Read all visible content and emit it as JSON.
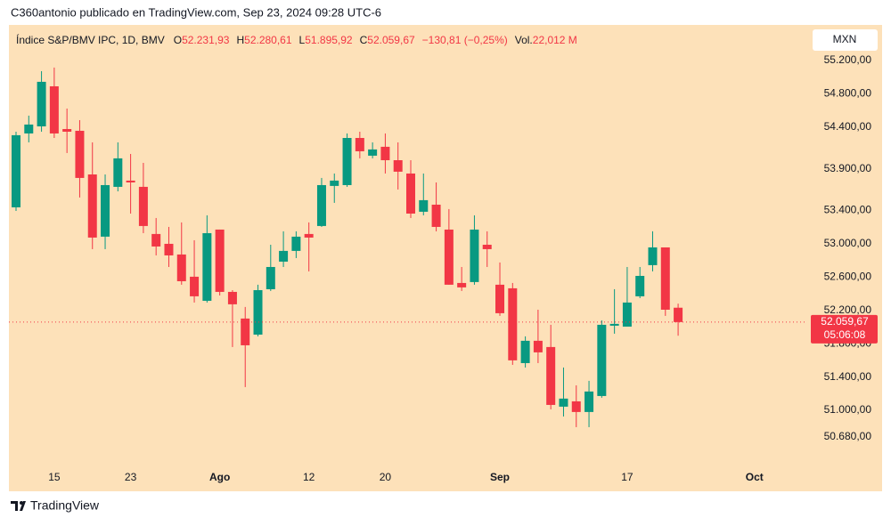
{
  "chart_data": {
    "type": "candlestick",
    "header": "C360antonio publicado en TradingView.com, Sep 23, 2024 09:28 UTC-6",
    "symbol": "Índice S&P/BMV IPC, 1D, BMV",
    "legend": [
      {
        "key": "O",
        "value": "52.231,93"
      },
      {
        "key": "H",
        "value": "52.280,61"
      },
      {
        "key": "L",
        "value": "51.895,92"
      },
      {
        "key": "C",
        "value": "52.059,67"
      }
    ],
    "change": "−130,81 (−0,25%)",
    "volume_key": "Vol.",
    "volume": "22,012 M",
    "currency": "MXN",
    "last_label": "52.059,67",
    "countdown": "05:06:08",
    "brand": "TradingView",
    "up_color": "#089981",
    "down_color": "#f23645",
    "categories": [
      null,
      null,
      null,
      "15",
      null,
      null,
      null,
      null,
      null,
      "23",
      null,
      null,
      null,
      null,
      null,
      null,
      "Ago",
      null,
      null,
      null,
      null,
      null,
      null,
      "12",
      null,
      null,
      null,
      null,
      null,
      "20",
      null,
      null,
      null,
      null,
      null,
      null,
      null,
      null,
      "Sep",
      null,
      null,
      null,
      null,
      null,
      null,
      null,
      null,
      null,
      "17",
      null,
      null,
      null,
      null,
      null,
      null,
      null,
      null,
      null,
      "Oct"
    ],
    "open": [
      53437,
      54324,
      54409,
      54890,
      54377,
      54356,
      53832,
      53085,
      53683,
      53758,
      53683,
      53117,
      52999,
      52871,
      52604,
      52315,
      53170,
      52422,
      52102,
      51909,
      52454,
      52785,
      52914,
      53117,
      53213,
      53694,
      53704,
      54270,
      54057,
      54164,
      54003,
      53843,
      53384,
      53469,
      53170,
      52529,
      52540,
      52988,
      52508,
      52465,
      51567,
      51835,
      51760,
      51044,
      51108,
      50980,
      51172,
      52016,
      52005,
      52369,
      52743,
      52956,
      52231.93,
      null,
      null,
      null,
      null,
      null,
      null
    ],
    "high": [
      54345,
      54538,
      55072,
      55115,
      54623,
      54484,
      54217,
      53832,
      54217,
      54078,
      53971,
      53309,
      53202,
      53256,
      53042,
      53341,
      53170,
      52443,
      52241,
      52508,
      52988,
      53149,
      53149,
      53256,
      53790,
      53843,
      54324,
      54345,
      54217,
      54324,
      54217,
      54003,
      53843,
      53736,
      53416,
      52721,
      53341,
      53149,
      52775,
      52529,
      51888,
      52208,
      52027,
      51514,
      51300,
      51354,
      52080,
      52454,
      52721,
      52721,
      53149,
      52956,
      52280.61,
      null,
      null,
      null,
      null,
      null,
      null
    ],
    "low": [
      53394,
      54217,
      54345,
      54270,
      54089,
      53555,
      52935,
      52935,
      53629,
      53362,
      53127,
      52860,
      52721,
      52508,
      52294,
      52294,
      52379,
      51760,
      51279,
      51888,
      52433,
      52721,
      52828,
      52668,
      53202,
      53491,
      53683,
      54025,
      54025,
      53843,
      53651,
      53309,
      53341,
      53149,
      52508,
      52433,
      52508,
      52721,
      52134,
      51546,
      51514,
      51567,
      51012,
      50926,
      50798,
      50798,
      51151,
      51920,
      52005,
      52347,
      52668,
      52134,
      51895.92,
      null,
      null,
      null,
      null,
      null,
      null
    ],
    "close": [
      54303,
      54431,
      54944,
      54324,
      54345,
      53790,
      53074,
      53704,
      54025,
      53736,
      53213,
      52967,
      52860,
      52550,
      52369,
      53127,
      52422,
      52273,
      51781,
      52443,
      52721,
      52914,
      53085,
      53074,
      53704,
      53758,
      54270,
      54110,
      54132,
      54003,
      53865,
      53362,
      53523,
      53202,
      52508,
      52476,
      53170,
      52935,
      52166,
      51600,
      51835,
      51696,
      51065,
      51141,
      50980,
      51226,
      52027,
      52038,
      52294,
      52614,
      52956,
      52208,
      52059.67,
      null,
      null,
      null,
      null,
      null,
      null
    ],
    "ylim": [
      50370,
      55627
    ],
    "yticks": [
      {
        "value": 55200,
        "label": "55.200,00"
      },
      {
        "value": 54800,
        "label": "54.800,00"
      },
      {
        "value": 54400,
        "label": "54.400,00"
      },
      {
        "value": 53900,
        "label": "53.900,00"
      },
      {
        "value": 53400,
        "label": "53.400,00"
      },
      {
        "value": 53000,
        "label": "53.000,00"
      },
      {
        "value": 52600,
        "label": "52.600,00"
      },
      {
        "value": 52200,
        "label": "52.200,00"
      },
      {
        "value": 51800,
        "label": "51.800,00"
      },
      {
        "value": 51400,
        "label": "51.400,00"
      },
      {
        "value": 51000,
        "label": "51.000,00"
      },
      {
        "value": 50680,
        "label": "50.680,00"
      }
    ]
  }
}
